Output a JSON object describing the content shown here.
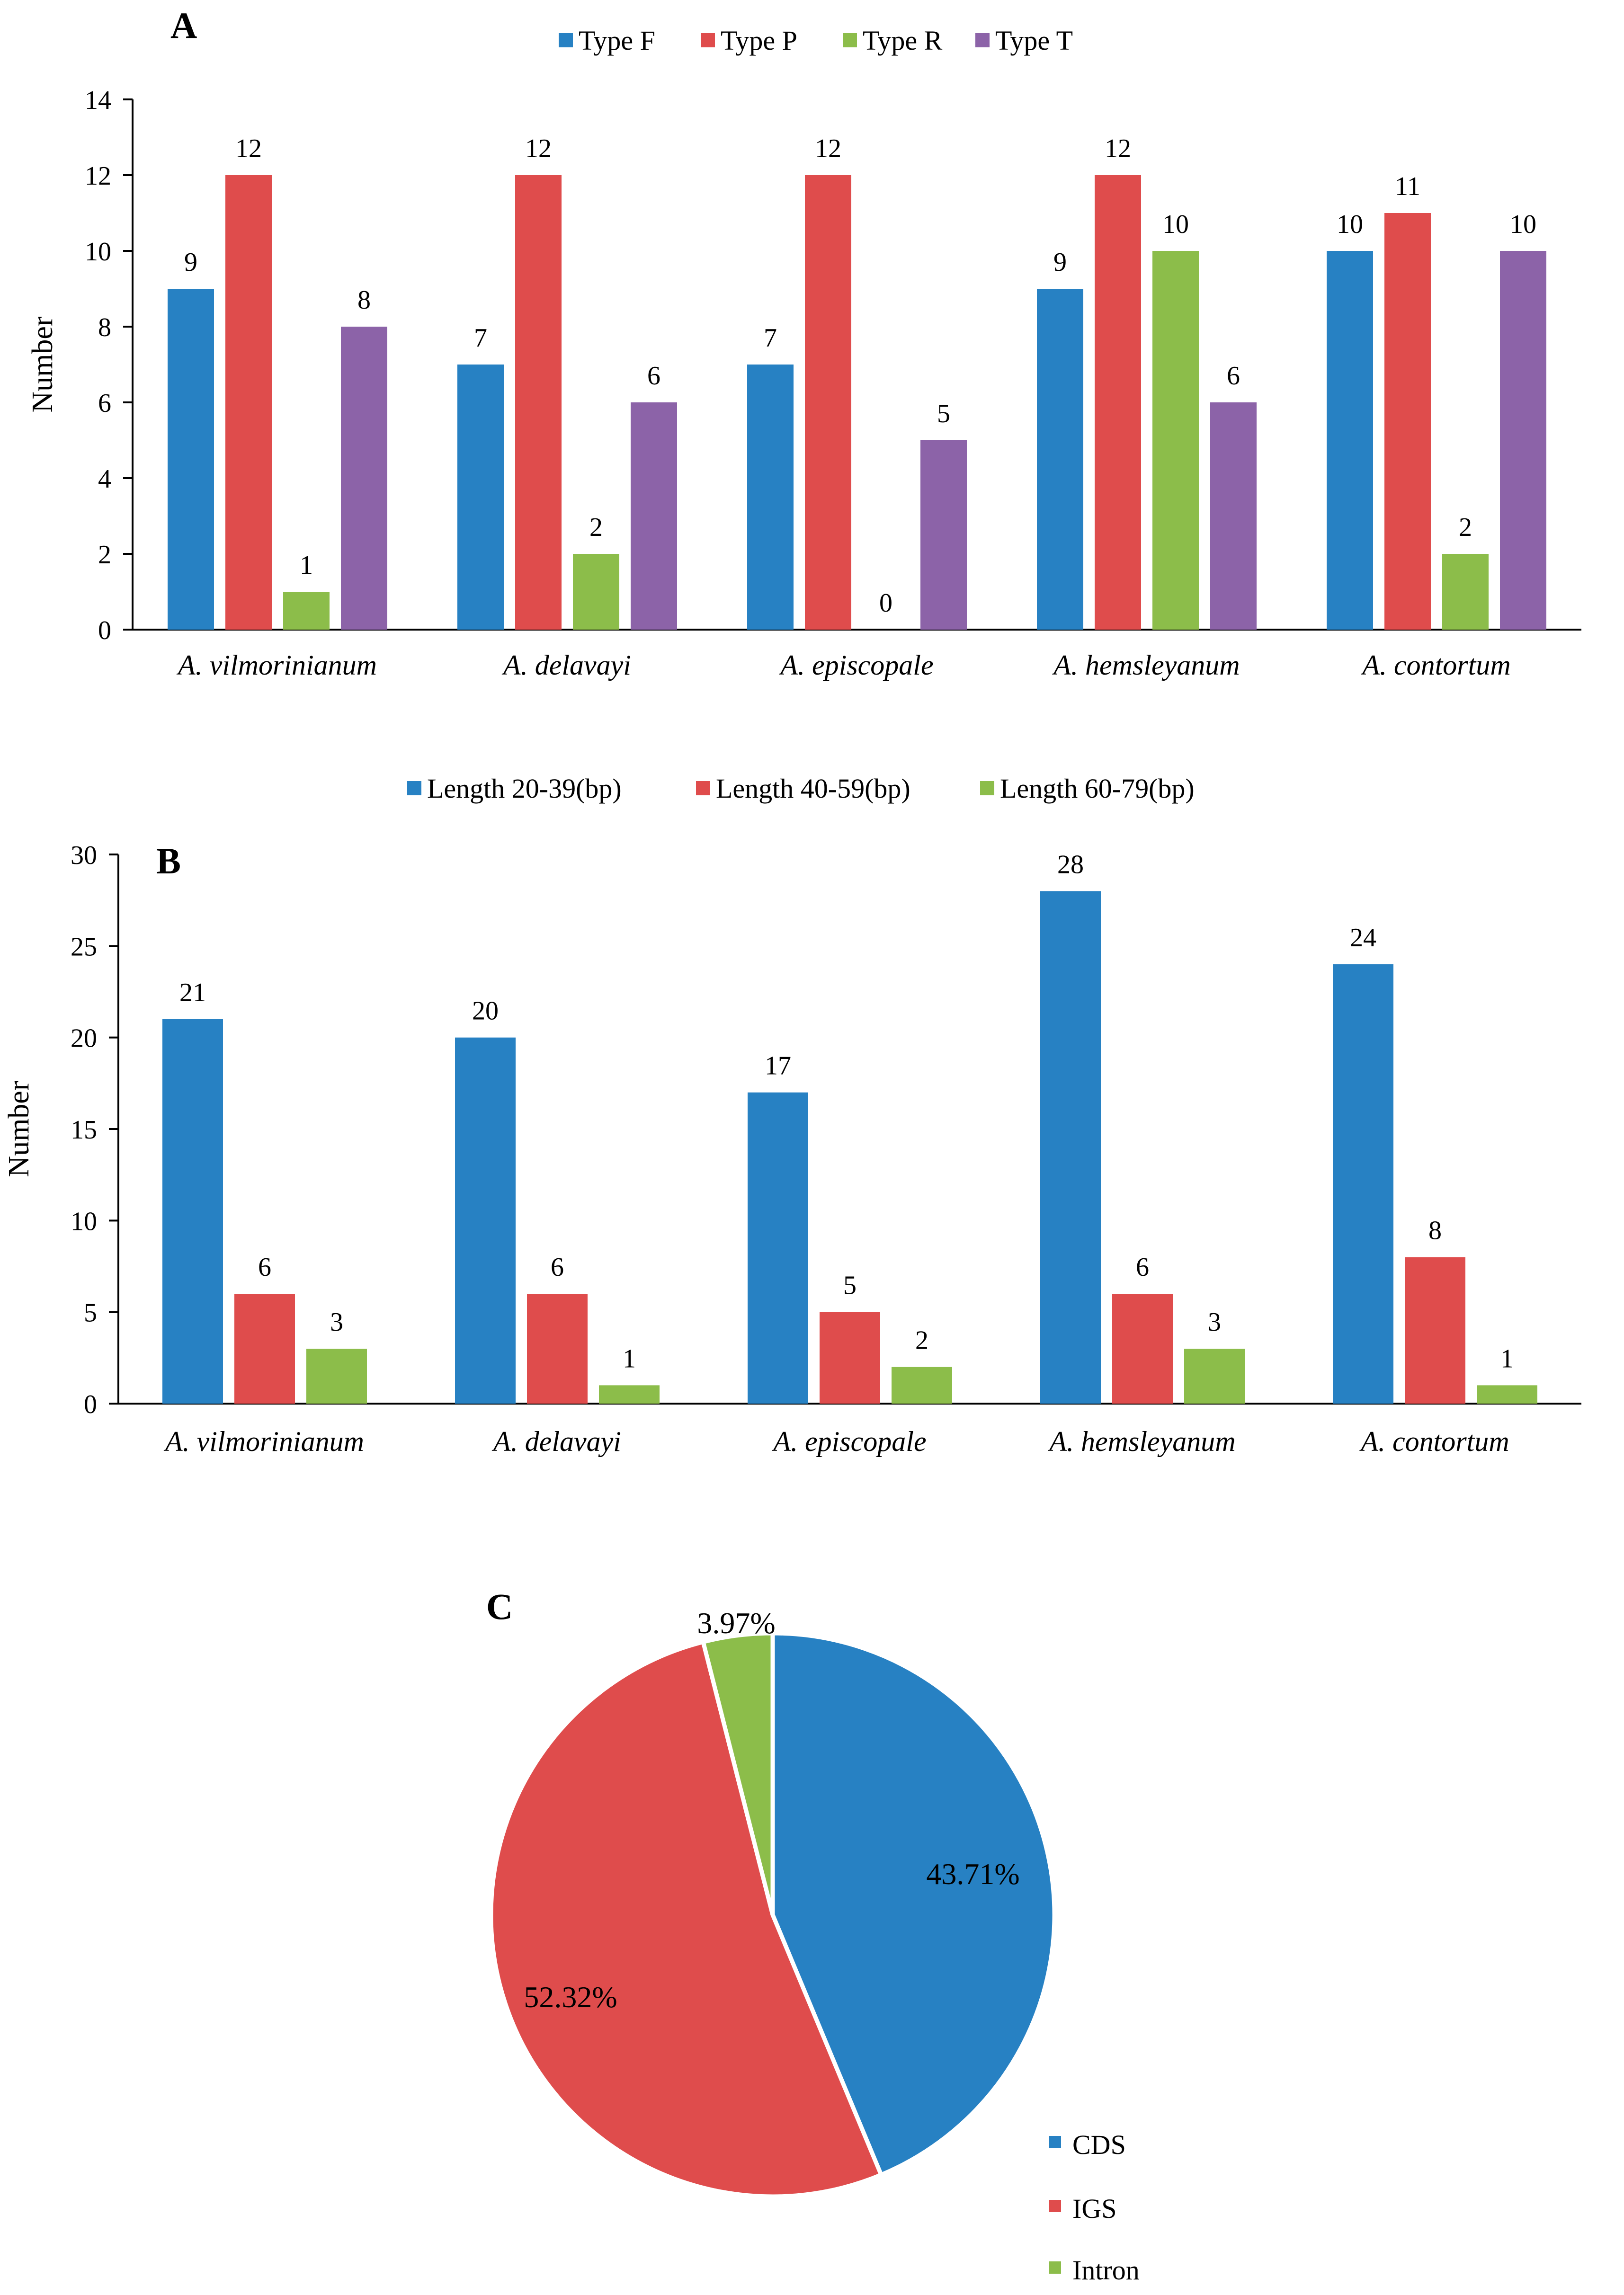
{
  "chart_data": [
    {
      "panel": "A",
      "type": "bar",
      "title": "",
      "xlabel": "",
      "ylabel": "Number",
      "ylim": [
        0,
        14
      ],
      "yticks": [
        0,
        2,
        4,
        6,
        8,
        10,
        12,
        14
      ],
      "categories": [
        "A. vilmorinianum",
        "A. delavayi",
        "A. episcopale",
        "A. hemsleyanum",
        "A.  contortum"
      ],
      "series": [
        {
          "name": "Type F",
          "color": "#2781C3",
          "values": [
            9,
            7,
            7,
            9,
            10
          ]
        },
        {
          "name": "Type P",
          "color": "#DF4C4C",
          "values": [
            12,
            12,
            12,
            12,
            11
          ]
        },
        {
          "name": "Type R",
          "color": "#8CBD4A",
          "values": [
            1,
            2,
            0,
            10,
            2
          ]
        },
        {
          "name": "Type T",
          "color": "#8C63A8",
          "values": [
            8,
            6,
            5,
            6,
            10
          ]
        }
      ],
      "legend_position": "top"
    },
    {
      "panel": "B",
      "type": "bar",
      "title": "",
      "xlabel": "",
      "ylabel": "Number",
      "ylim": [
        0,
        30
      ],
      "yticks": [
        0,
        5,
        10,
        15,
        20,
        25,
        30
      ],
      "categories": [
        "A. vilmorinianum",
        "A. delavayi",
        "A. episcopale",
        "A. hemsleyanum",
        "A.  contortum"
      ],
      "series": [
        {
          "name": "Length 20-39(bp)",
          "color": "#2781C3",
          "values": [
            21,
            20,
            17,
            28,
            24
          ]
        },
        {
          "name": "Length 40-59(bp)",
          "color": "#DF4C4C",
          "values": [
            6,
            6,
            5,
            6,
            8
          ]
        },
        {
          "name": "Length 60-79(bp)",
          "color": "#8CBD4A",
          "values": [
            3,
            1,
            2,
            3,
            1
          ]
        }
      ],
      "legend_position": "top"
    },
    {
      "panel": "C",
      "type": "pie",
      "title": "",
      "slices": [
        {
          "name": "CDS",
          "value": 43.71,
          "label": "43.71%",
          "color": "#2781C3"
        },
        {
          "name": "IGS",
          "value": 52.32,
          "label": "52.32%",
          "color": "#DF4C4C"
        },
        {
          "name": "Intron",
          "value": 3.97,
          "label": "3.97%",
          "color": "#8CBD4A"
        }
      ],
      "legend_position": "bottom-right"
    }
  ]
}
